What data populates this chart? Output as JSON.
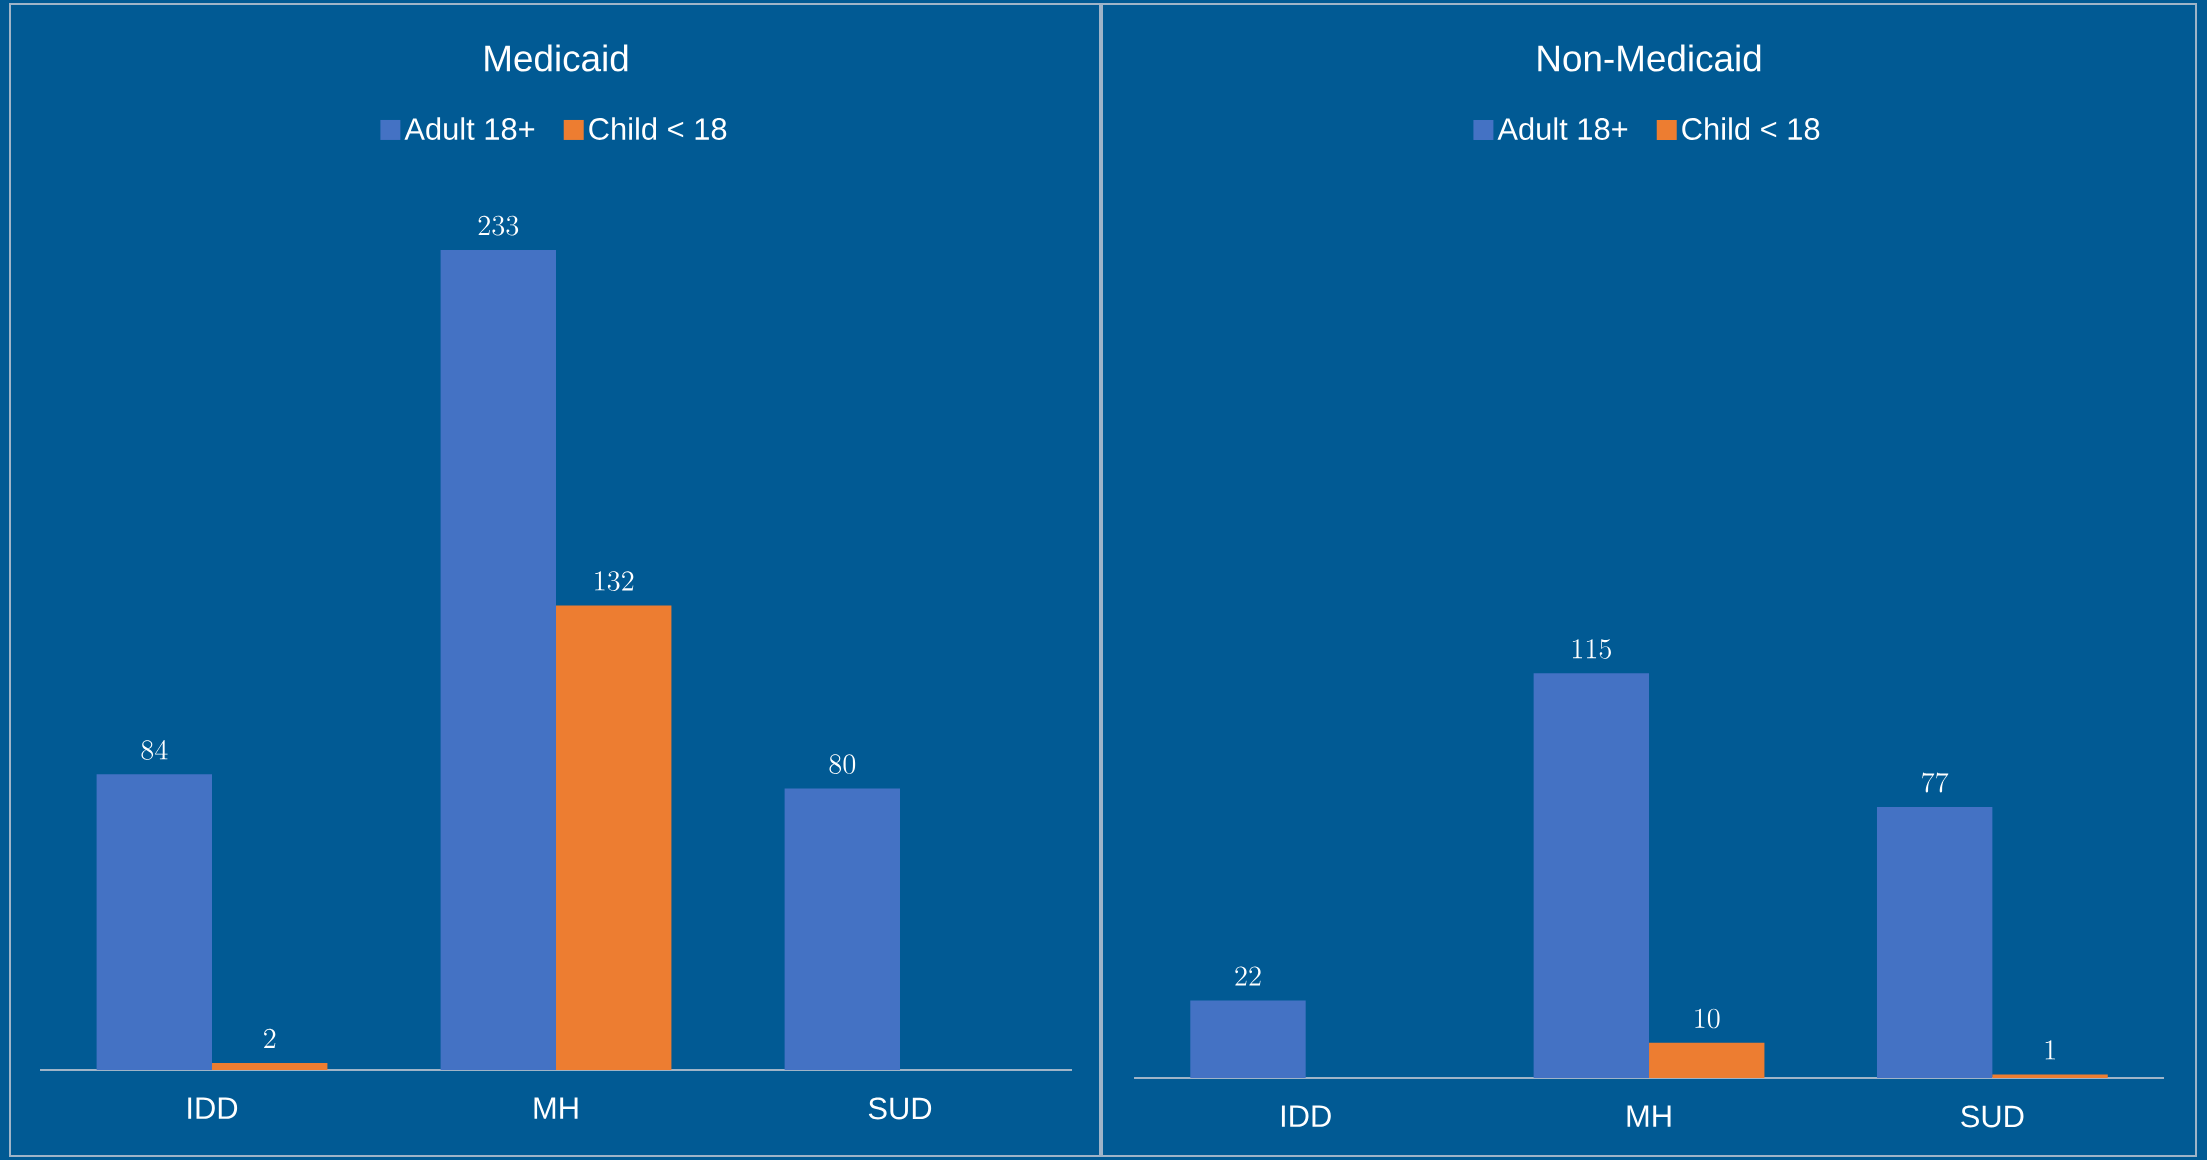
{
  "chart_data": [
    {
      "type": "bar",
      "title": "Medicaid",
      "categories": [
        "IDD",
        "MH",
        "SUD"
      ],
      "data_labels": true,
      "legend": "top",
      "series": [
        {
          "name": "Adult 18+",
          "color": "#4472c4",
          "values": [
            84,
            233,
            80
          ]
        },
        {
          "name": "Child < 18",
          "color": "#ed7d31",
          "values": [
            2,
            132,
            null
          ]
        }
      ]
    },
    {
      "type": "bar",
      "title": "Non-Medicaid",
      "categories": [
        "IDD",
        "MH",
        "SUD"
      ],
      "data_labels": true,
      "legend": "top",
      "series": [
        {
          "name": "Adult 18+",
          "color": "#4472c4",
          "values": [
            22,
            115,
            77
          ]
        },
        {
          "name": "Child < 18",
          "color": "#ed7d31",
          "values": [
            null,
            10,
            1
          ]
        }
      ]
    }
  ]
}
